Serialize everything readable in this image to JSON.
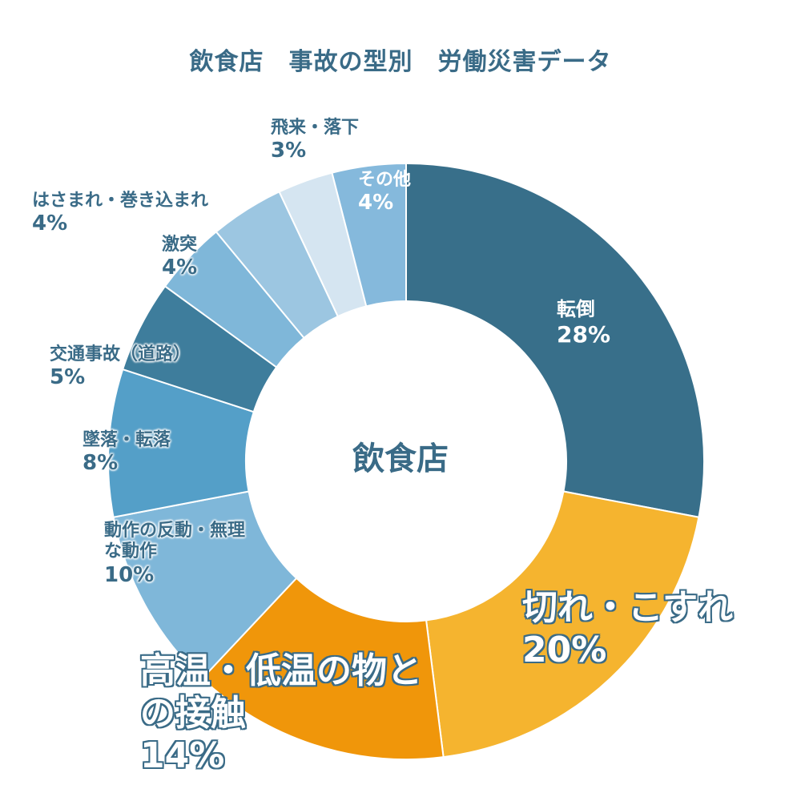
{
  "chart_data": {
    "type": "pie",
    "title": "飲食店　事故の型別　労働災害データ",
    "center_label": "飲食店",
    "slices": [
      {
        "label": "転倒",
        "value": 28,
        "value_label": "28%",
        "color": "#386f8a"
      },
      {
        "label": "切れ・こすれ",
        "value": 20,
        "value_label": "20%",
        "color": "#f5b42f"
      },
      {
        "label": "高温・低温の物との接触",
        "value": 14,
        "value_label": "14%",
        "color": "#f0960a"
      },
      {
        "label": "動作の反動・無理な動作",
        "value": 10,
        "value_label": "10%",
        "color": "#7fb7d9"
      },
      {
        "label": "墜落・転落",
        "value": 8,
        "value_label": "8%",
        "color": "#549fc8"
      },
      {
        "label": "交通事故（道路）",
        "value": 5,
        "value_label": "5%",
        "color": "#3e7d9c"
      },
      {
        "label": "激突",
        "value": 4,
        "value_label": "4%",
        "color": "#7fb7d9"
      },
      {
        "label": "はさまれ・巻き込まれ",
        "value": 4,
        "value_label": "4%",
        "color": "#9cc6e1"
      },
      {
        "label": "飛来・落下",
        "value": 3,
        "value_label": "3%",
        "color": "#d5e5f1"
      },
      {
        "label": "その他",
        "value": 4,
        "value_label": "4%",
        "color": "#85b9dc"
      }
    ]
  }
}
